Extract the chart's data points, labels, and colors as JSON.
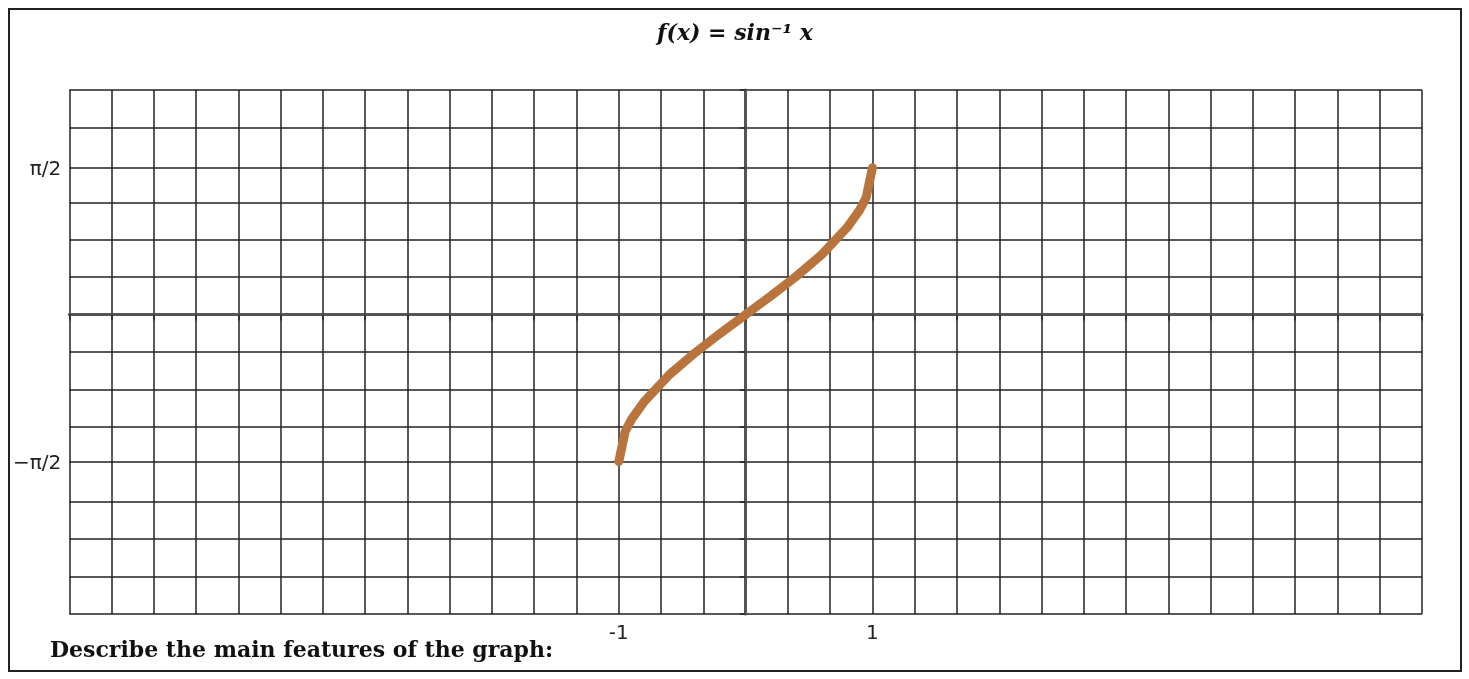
{
  "chart_data": {
    "type": "line",
    "title": "f(x) = sin⁻¹ x",
    "annotations": [
      "Describe the main features of the graph:"
    ],
    "x": [
      -1,
      -0.95,
      -0.9,
      -0.8,
      -0.6,
      -0.4,
      -0.2,
      0,
      0.2,
      0.4,
      0.6,
      0.8,
      0.9,
      0.95,
      1
    ],
    "series": [
      {
        "color": "#b8743c",
        "values": [
          -1.57,
          -1.25,
          -1.12,
          -0.93,
          -0.64,
          -0.41,
          -0.2,
          0,
          0.2,
          0.41,
          0.64,
          0.93,
          1.12,
          1.25,
          1.57
        ]
      }
    ],
    "xlim": [
      -5.333,
      5.333
    ],
    "xticks": [
      {
        "value": -5.333,
        "label": null
      },
      {
        "value": -5,
        "label": null
      },
      {
        "value": -4.667,
        "label": null
      },
      {
        "value": -4.333,
        "label": null
      },
      {
        "value": -4,
        "label": null
      },
      {
        "value": -3.667,
        "label": null
      },
      {
        "value": -3.333,
        "label": null
      },
      {
        "value": -3,
        "label": null
      },
      {
        "value": -2.667,
        "label": null
      },
      {
        "value": -2.333,
        "label": null
      },
      {
        "value": -2,
        "label": null
      },
      {
        "value": -1.667,
        "label": null
      },
      {
        "value": -1.333,
        "label": null
      },
      -1,
      {
        "value": -0.667,
        "label": null
      },
      {
        "value": -0.333,
        "label": null
      },
      {
        "value": 0,
        "label": null
      },
      {
        "value": 0.333,
        "label": null
      },
      {
        "value": 0.667,
        "label": null
      },
      1,
      {
        "value": 1.333,
        "label": null
      },
      {
        "value": 1.667,
        "label": null
      },
      {
        "value": 2,
        "label": null
      },
      {
        "value": 2.333,
        "label": null
      },
      {
        "value": 2.667,
        "label": null
      },
      {
        "value": 3,
        "label": null
      },
      {
        "value": 3.333,
        "label": null
      },
      {
        "value": 3.667,
        "label": null
      },
      {
        "value": 4,
        "label": null
      },
      {
        "value": 4.333,
        "label": null
      },
      {
        "value": 4.667,
        "label": null
      },
      {
        "value": 5,
        "label": null
      },
      {
        "value": 5.333,
        "label": null
      }
    ],
    "ylim": [
      -3.2,
      2.4
    ],
    "yticks": [
      {
        "value": -3.2,
        "label": null
      },
      {
        "value": -2.8,
        "label": null
      },
      {
        "value": -2.4,
        "label": null
      },
      {
        "value": -2,
        "label": null
      },
      {
        "value": -1.571,
        "label": "−π/2"
      },
      {
        "value": -1.2,
        "label": null
      },
      {
        "value": -0.8,
        "label": null
      },
      {
        "value": -0.4,
        "label": null
      },
      {
        "value": 0,
        "label": null
      },
      {
        "value": 0.4,
        "label": null
      },
      {
        "value": 0.8,
        "label": null
      },
      {
        "value": 1.2,
        "label": null
      },
      {
        "value": 1.571,
        "label": "π/2"
      },
      {
        "value": 2,
        "label": null
      },
      {
        "value": 2.4,
        "label": null
      }
    ],
    "grid": true,
    "line_style": "solid"
  }
}
